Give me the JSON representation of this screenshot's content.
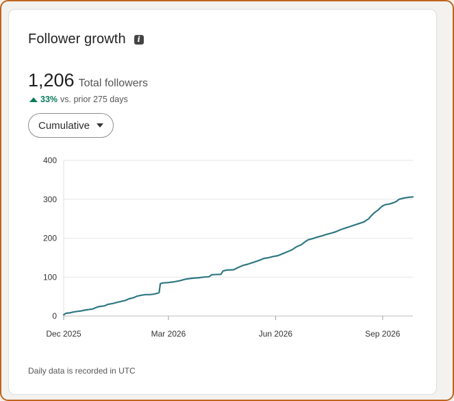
{
  "card": {
    "title": "Follower growth",
    "info_icon": "info-icon",
    "total_value": "1,206",
    "total_label": "Total followers",
    "change_pct": "33%",
    "change_text": "vs. prior 275 days",
    "change_icon": "triangle-up-icon",
    "dropdown_label": "Cumulative",
    "footnote": "Daily data is recorded in UTC"
  },
  "colors": {
    "line": "#2e7782",
    "positive": "#0a7a5b",
    "frame": "#c0641c"
  },
  "chart_data": {
    "type": "line",
    "ylim": [
      0,
      400
    ],
    "y_ticks": [
      0,
      100,
      200,
      300,
      400
    ],
    "x_ticks": [
      {
        "label": "Dec 2025",
        "day": 0
      },
      {
        "label": "Mar 2026",
        "day": 90
      },
      {
        "label": "Jun 2026",
        "day": 182
      },
      {
        "label": "Sep 2026",
        "day": 274
      }
    ],
    "grid": true,
    "legend": "none",
    "series": [
      {
        "points": [
          [
            0,
            3
          ],
          [
            2,
            7
          ],
          [
            5,
            8
          ],
          [
            8,
            10
          ],
          [
            12,
            12
          ],
          [
            15,
            13
          ],
          [
            18,
            15
          ],
          [
            22,
            17
          ],
          [
            25,
            18
          ],
          [
            28,
            22
          ],
          [
            30,
            24
          ],
          [
            35,
            26
          ],
          [
            38,
            30
          ],
          [
            42,
            32
          ],
          [
            46,
            35
          ],
          [
            50,
            38
          ],
          [
            53,
            40
          ],
          [
            56,
            44
          ],
          [
            60,
            47
          ],
          [
            63,
            51
          ],
          [
            66,
            53
          ],
          [
            70,
            55
          ],
          [
            74,
            55
          ],
          [
            77,
            56
          ],
          [
            80,
            58
          ],
          [
            82,
            60
          ],
          [
            83,
            83
          ],
          [
            85,
            85
          ],
          [
            90,
            86
          ],
          [
            95,
            88
          ],
          [
            100,
            91
          ],
          [
            105,
            95
          ],
          [
            110,
            97
          ],
          [
            115,
            98
          ],
          [
            120,
            100
          ],
          [
            125,
            101
          ],
          [
            127,
            106
          ],
          [
            133,
            107
          ],
          [
            135,
            107
          ],
          [
            137,
            116
          ],
          [
            140,
            118
          ],
          [
            146,
            119
          ],
          [
            150,
            125
          ],
          [
            154,
            130
          ],
          [
            158,
            133
          ],
          [
            163,
            138
          ],
          [
            168,
            143
          ],
          [
            172,
            148
          ],
          [
            176,
            150
          ],
          [
            180,
            153
          ],
          [
            184,
            155
          ],
          [
            188,
            160
          ],
          [
            192,
            165
          ],
          [
            196,
            170
          ],
          [
            200,
            178
          ],
          [
            204,
            183
          ],
          [
            207,
            190
          ],
          [
            210,
            196
          ],
          [
            214,
            199
          ],
          [
            218,
            203
          ],
          [
            222,
            206
          ],
          [
            226,
            210
          ],
          [
            230,
            213
          ],
          [
            234,
            217
          ],
          [
            238,
            222
          ],
          [
            242,
            226
          ],
          [
            246,
            230
          ],
          [
            250,
            234
          ],
          [
            254,
            238
          ],
          [
            258,
            242
          ],
          [
            260,
            246
          ],
          [
            262,
            250
          ],
          [
            264,
            257
          ],
          [
            266,
            263
          ],
          [
            268,
            268
          ],
          [
            270,
            272
          ],
          [
            272,
            278
          ],
          [
            274,
            283
          ],
          [
            276,
            286
          ],
          [
            280,
            288
          ],
          [
            284,
            292
          ],
          [
            286,
            295
          ],
          [
            288,
            300
          ],
          [
            292,
            303
          ],
          [
            296,
            305
          ],
          [
            300,
            306
          ]
        ]
      }
    ]
  }
}
